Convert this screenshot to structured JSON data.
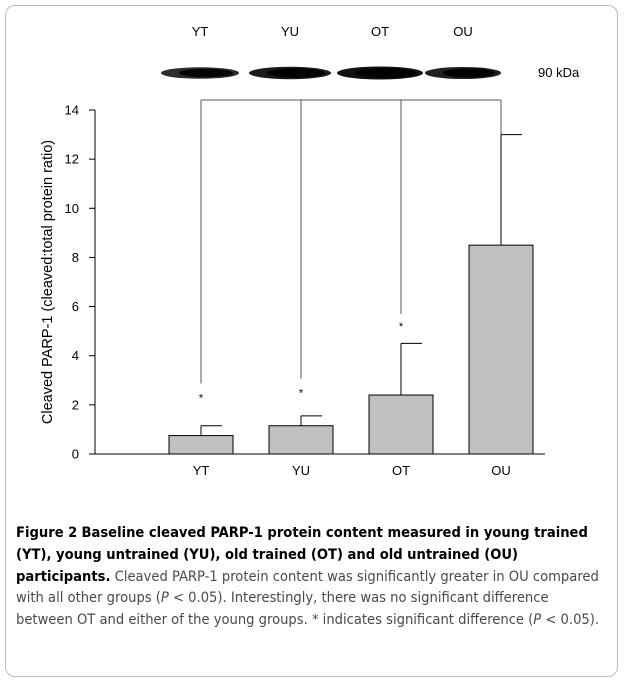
{
  "blot": {
    "lane_labels": [
      "YT",
      "YU",
      "OT",
      "OU"
    ],
    "size_label": "90 kDa",
    "band_intensity": [
      0.75,
      0.9,
      1.0,
      0.85
    ]
  },
  "chart_data": {
    "type": "bar",
    "categories": [
      "YT",
      "YU",
      "OT",
      "OU"
    ],
    "values": [
      0.75,
      1.15,
      2.4,
      8.5
    ],
    "error_upper": [
      1.15,
      1.55,
      4.5,
      13.0
    ],
    "significance": [
      "*",
      "*",
      "*",
      ""
    ],
    "title": "",
    "xlabel": "",
    "ylabel": "Cleaved PARP-1 (cleaved:total protein ratio)",
    "ylim": [
      0,
      14
    ],
    "yticks": [
      0,
      2,
      4,
      6,
      8,
      10,
      12,
      14
    ],
    "grid": false,
    "bar_color": "#c0c0c0",
    "comparison_bracket": "OU vs all other groups"
  },
  "caption": {
    "figure_label": "Figure 2",
    "title": "Baseline cleaved PARP-1 protein content measured in young trained (YT), young untrained (YU), old trained (OT) and old untrained (OU) participants.",
    "body_1": "Cleaved PARP-1 protein content was significantly greater in OU compared with all other groups (",
    "p1_var": "P",
    "p1_rest": " < 0.05). Interestingly, there was no significant difference between OT and either of the young groups. * indicates significant difference (",
    "p2_var": "P",
    "p2_rest": " < 0.05)."
  }
}
